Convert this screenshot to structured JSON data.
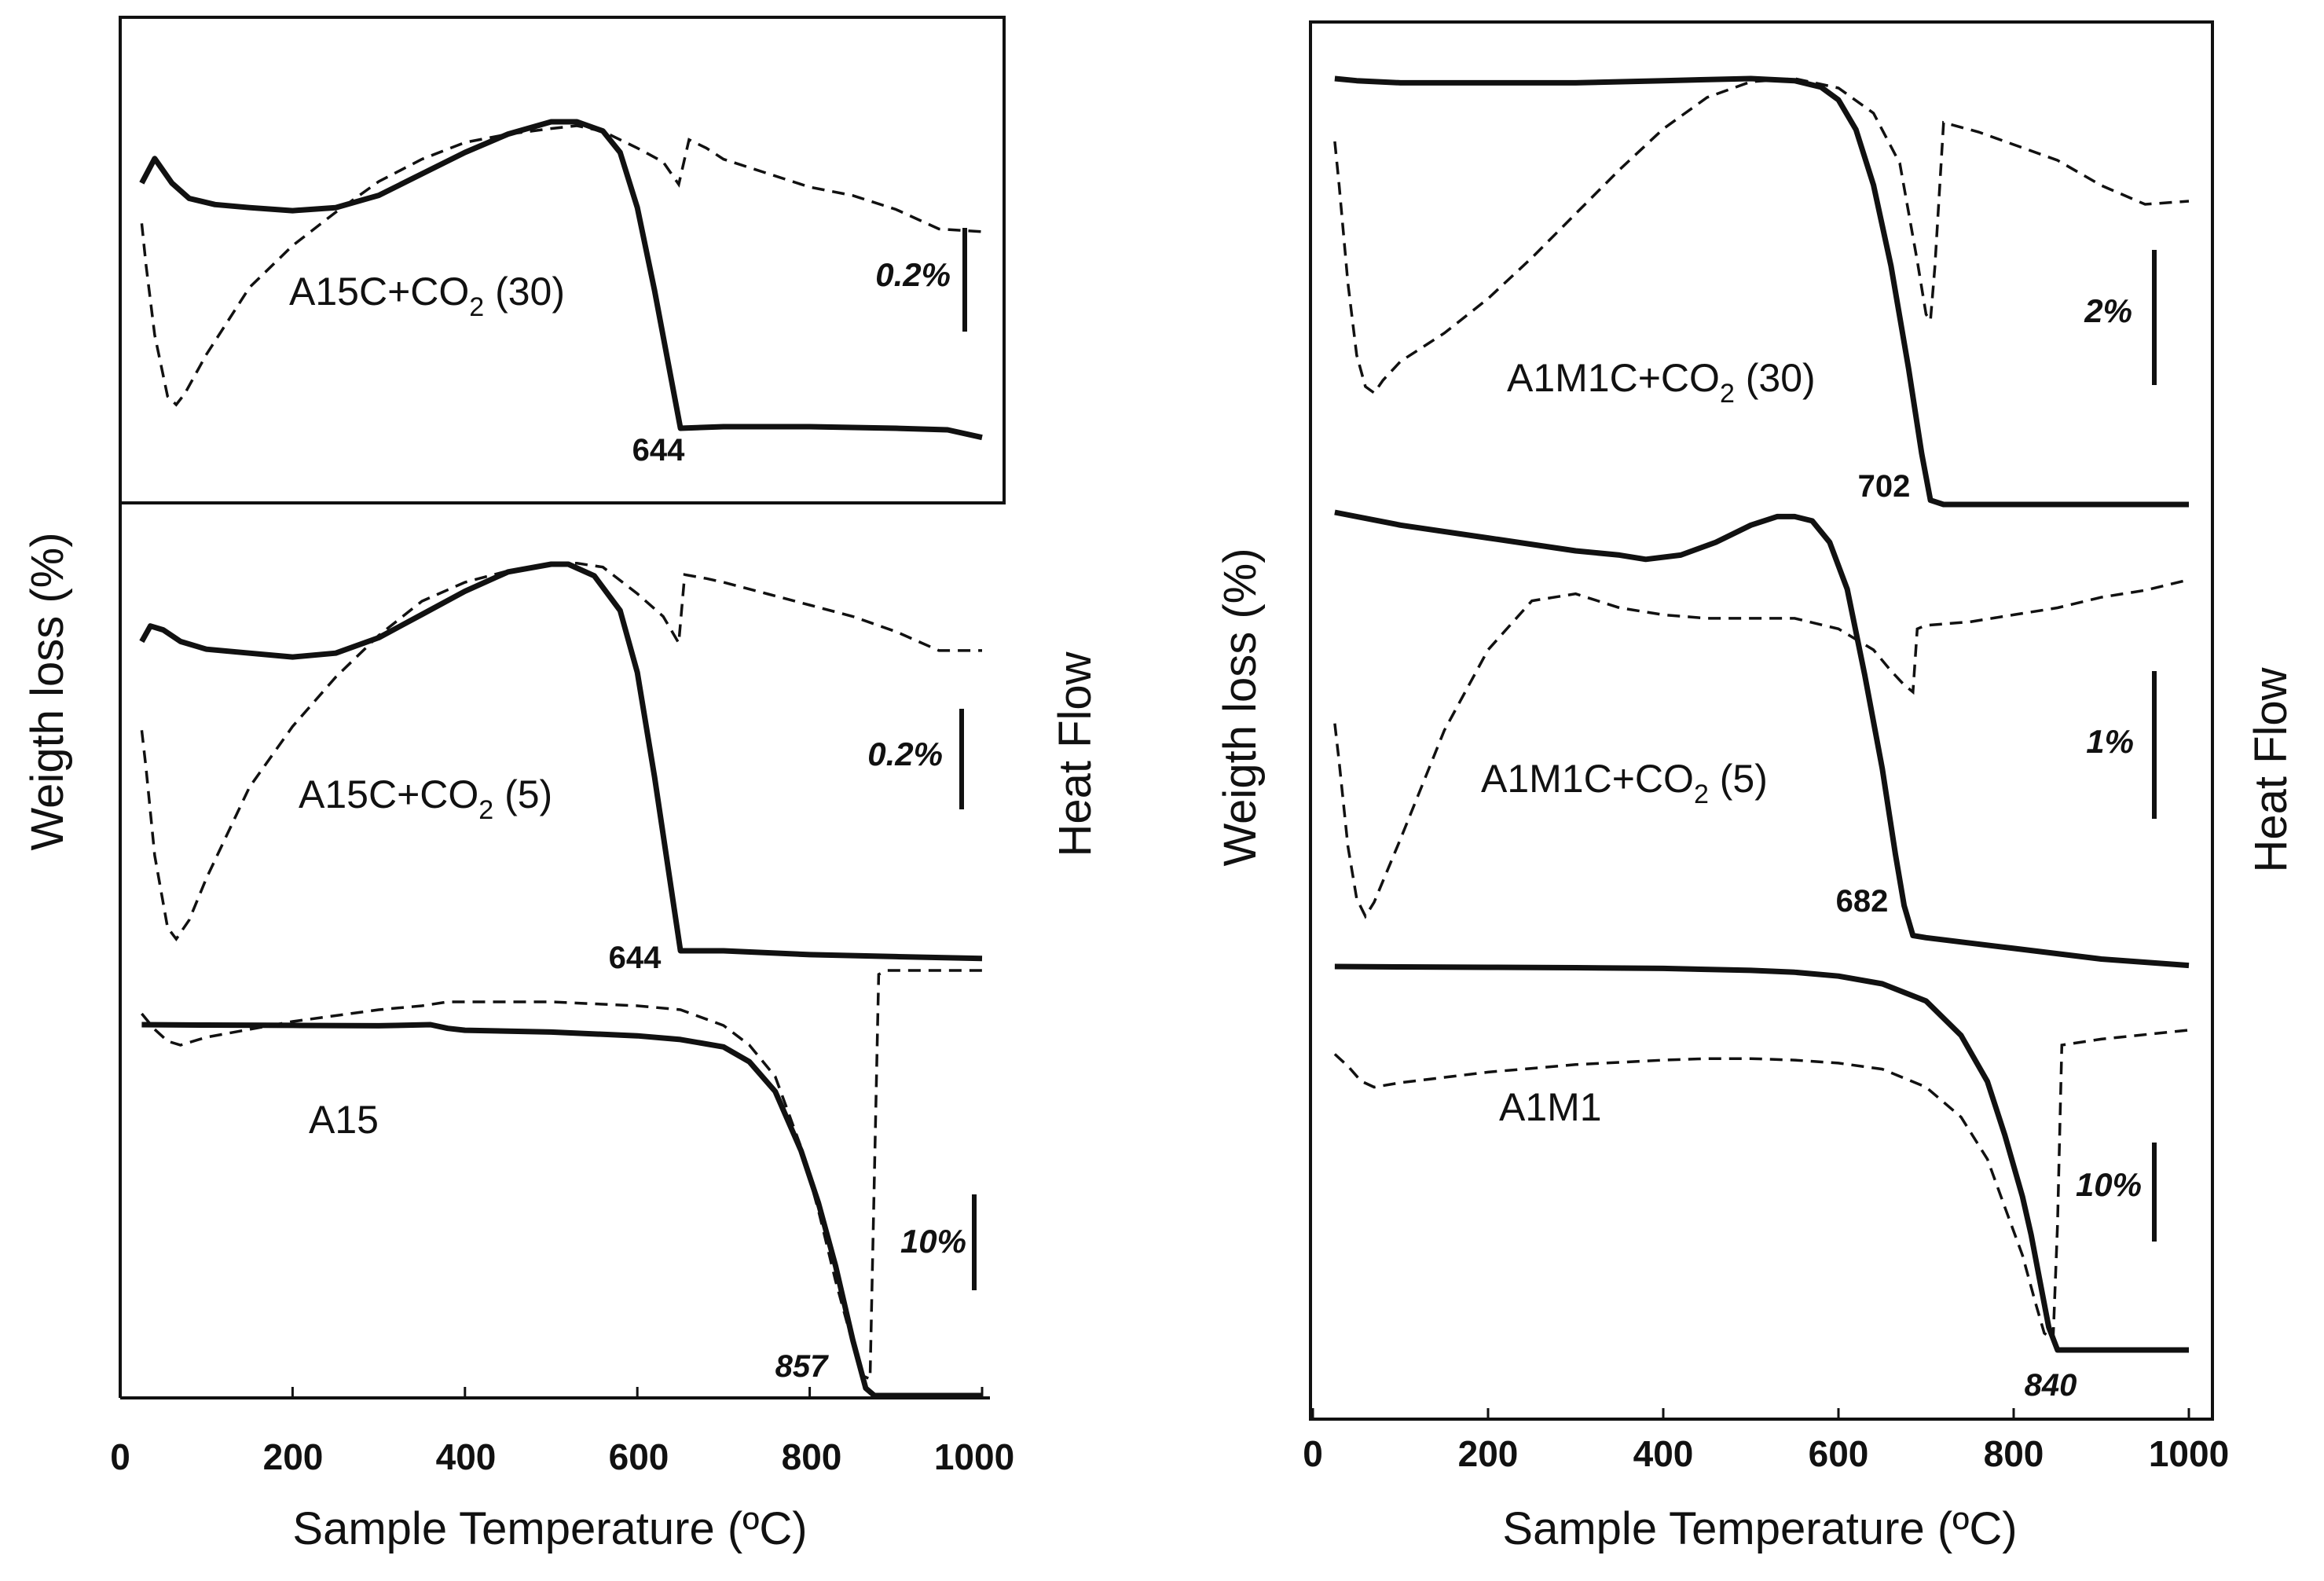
{
  "chart_data": [
    {
      "type": "line",
      "xlabel": "Sample Temperature (ºC)",
      "ylabel_left": "Weigth loss (%)",
      "ylabel_right": "Heat Flow",
      "xlim": [
        0,
        1000
      ],
      "xticks": [
        "0",
        "200",
        "400",
        "600",
        "800",
        "1000"
      ],
      "subplots": [
        {
          "label": {
            "base": "A15C+CO",
            "sub": "2",
            "tail": " (30)"
          },
          "peak": "644",
          "scale": "0.2%",
          "series": [
            {
              "name": "weight loss",
              "style": "solid",
              "x": [
                25,
                40,
                60,
                80,
                110,
                150,
                200,
                250,
                300,
                350,
                400,
                450,
                500,
                530,
                560,
                580,
                600,
                620,
                640,
                650,
                700,
                800,
                900,
                960,
                1000
              ],
              "y": [
                0.8,
                0.88,
                0.8,
                0.75,
                0.73,
                0.72,
                0.71,
                0.72,
                0.76,
                0.83,
                0.9,
                0.96,
                1.0,
                1.0,
                0.97,
                0.9,
                0.72,
                0.45,
                0.15,
                0.0,
                0.005,
                0.005,
                0.0,
                -0.005,
                -0.03
              ]
            },
            {
              "name": "heat flow",
              "style": "dashed",
              "x": [
                25,
                30,
                40,
                55,
                65,
                75,
                100,
                150,
                200,
                250,
                300,
                350,
                400,
                450,
                500,
                530,
                560,
                600,
                630,
                648,
                660,
                680,
                700,
                750,
                800,
                850,
                900,
                950,
                1000
              ],
              "y": [
                0.65,
                0.5,
                0.25,
                0.03,
                0.0,
                0.04,
                0.18,
                0.42,
                0.57,
                0.69,
                0.8,
                0.88,
                0.94,
                0.97,
                0.99,
                1.0,
                0.98,
                0.92,
                0.87,
                0.79,
                0.95,
                0.92,
                0.88,
                0.83,
                0.78,
                0.75,
                0.7,
                0.63,
                0.62
              ]
            }
          ]
        },
        {
          "label": {
            "base": "A15C+CO",
            "sub": "2",
            "tail": " (5)"
          },
          "peak": "644",
          "scale": "0.2%",
          "series": [
            {
              "name": "weight loss",
              "style": "solid",
              "x": [
                25,
                35,
                50,
                70,
                100,
                150,
                200,
                250,
                300,
                350,
                400,
                450,
                500,
                520,
                550,
                580,
                600,
                620,
                640,
                650,
                700,
                800,
                900,
                1000
              ],
              "y": [
                0.8,
                0.84,
                0.83,
                0.8,
                0.78,
                0.77,
                0.76,
                0.77,
                0.81,
                0.87,
                0.93,
                0.98,
                1.0,
                1.0,
                0.97,
                0.88,
                0.72,
                0.45,
                0.15,
                0.0,
                0.0,
                -0.01,
                -0.015,
                -0.02
              ]
            },
            {
              "name": "heat flow",
              "style": "dashed",
              "x": [
                25,
                30,
                40,
                55,
                65,
                80,
                100,
                150,
                200,
                250,
                300,
                350,
                400,
                450,
                500,
                530,
                560,
                600,
                630,
                648,
                655,
                680,
                700,
                750,
                800,
                850,
                900,
                950,
                1000
              ],
              "y": [
                0.55,
                0.45,
                0.22,
                0.03,
                0.0,
                0.05,
                0.16,
                0.4,
                0.56,
                0.69,
                0.8,
                0.89,
                0.94,
                0.97,
                0.99,
                0.99,
                0.98,
                0.91,
                0.85,
                0.78,
                0.96,
                0.95,
                0.94,
                0.91,
                0.88,
                0.85,
                0.81,
                0.76,
                0.76
              ]
            }
          ]
        },
        {
          "label": {
            "base": "A15",
            "sub": "",
            "tail": ""
          },
          "peak": "857",
          "scale": "10%",
          "series": [
            {
              "name": "weight loss",
              "style": "solid",
              "x": [
                25,
                100,
                200,
                300,
                360,
                380,
                400,
                500,
                600,
                650,
                700,
                730,
                760,
                790,
                810,
                830,
                850,
                865,
                875,
                900,
                1000
              ],
              "y": [
                1.0,
                0.999,
                0.998,
                0.997,
                1.0,
                0.99,
                0.985,
                0.98,
                0.97,
                0.96,
                0.94,
                0.9,
                0.82,
                0.66,
                0.52,
                0.35,
                0.15,
                0.02,
                0.0,
                0.0,
                0.0
              ]
            },
            {
              "name": "heat flow",
              "style": "dashed",
              "x": [
                25,
                40,
                55,
                70,
                100,
                200,
                300,
                350,
                380,
                400,
                500,
                600,
                650,
                700,
                730,
                760,
                790,
                810,
                830,
                850,
                860,
                870,
                880,
                890,
                1000
              ],
              "y": [
                0.98,
                0.94,
                0.91,
                0.9,
                0.92,
                0.96,
                0.99,
                1.0,
                1.01,
                1.01,
                1.01,
                1.0,
                0.99,
                0.95,
                0.9,
                0.82,
                0.64,
                0.48,
                0.3,
                0.14,
                0.06,
                0.05,
                1.08,
                1.09,
                1.09
              ]
            }
          ]
        }
      ]
    },
    {
      "type": "line",
      "xlabel": "Sample Temperature (ºC)",
      "ylabel_left": "Weigth loss (%)",
      "ylabel_right": "Heat Flow",
      "xlim": [
        0,
        1000
      ],
      "xticks": [
        "0",
        "200",
        "400",
        "600",
        "800",
        "1000"
      ],
      "subplots": [
        {
          "label": {
            "base": "A1M1C+CO",
            "sub": "2",
            "tail": " (30)"
          },
          "peak": "702",
          "scale": "2%",
          "series": [
            {
              "name": "weight loss",
              "style": "solid",
              "x": [
                25,
                50,
                100,
                200,
                300,
                400,
                500,
                550,
                580,
                600,
                620,
                640,
                660,
                680,
                695,
                705,
                720,
                800,
                900,
                1000
              ],
              "y": [
                1.0,
                0.995,
                0.99,
                0.99,
                0.99,
                0.995,
                1.0,
                0.995,
                0.98,
                0.95,
                0.88,
                0.75,
                0.56,
                0.32,
                0.12,
                0.01,
                0.0,
                0.0,
                0.0,
                0.0
              ]
            },
            {
              "name": "heat flow",
              "style": "dashed",
              "x": [
                25,
                30,
                40,
                50,
                60,
                70,
                80,
                100,
                150,
                200,
                250,
                300,
                350,
                400,
                450,
                500,
                550,
                600,
                640,
                670,
                690,
                700,
                705,
                710,
                720,
                760,
                800,
                850,
                900,
                950,
                1000
              ],
              "y": [
                0.8,
                0.66,
                0.35,
                0.12,
                0.02,
                0.0,
                0.04,
                0.1,
                0.19,
                0.3,
                0.43,
                0.57,
                0.71,
                0.84,
                0.94,
                0.99,
                1.0,
                0.97,
                0.89,
                0.73,
                0.42,
                0.25,
                0.23,
                0.4,
                0.86,
                0.83,
                0.79,
                0.74,
                0.66,
                0.6,
                0.61
              ]
            }
          ]
        },
        {
          "label": {
            "base": "A1M1C+CO",
            "sub": "2",
            "tail": " (5)"
          },
          "peak": "682",
          "scale": "1%",
          "series": [
            {
              "name": "weight loss",
              "style": "solid",
              "x": [
                25,
                100,
                200,
                300,
                350,
                380,
                420,
                460,
                500,
                530,
                550,
                570,
                590,
                610,
                630,
                650,
                665,
                675,
                685,
                700,
                800,
                900,
                1000
              ],
              "y": [
                1.0,
                0.97,
                0.94,
                0.91,
                0.9,
                0.89,
                0.9,
                0.93,
                0.97,
                0.99,
                0.99,
                0.98,
                0.93,
                0.82,
                0.62,
                0.4,
                0.2,
                0.08,
                0.01,
                0.005,
                -0.02,
                -0.045,
                -0.06
              ]
            },
            {
              "name": "heat flow",
              "style": "dashed",
              "x": [
                25,
                30,
                40,
                50,
                60,
                70,
                100,
                150,
                200,
                250,
                300,
                350,
                400,
                450,
                500,
                550,
                600,
                640,
                660,
                675,
                685,
                690,
                700,
                750,
                800,
                850,
                900,
                950,
                1000
              ],
              "y": [
                0.55,
                0.44,
                0.2,
                0.05,
                0.0,
                0.04,
                0.22,
                0.53,
                0.76,
                0.9,
                0.92,
                0.88,
                0.86,
                0.85,
                0.85,
                0.85,
                0.82,
                0.76,
                0.7,
                0.66,
                0.64,
                0.82,
                0.83,
                0.84,
                0.86,
                0.88,
                0.91,
                0.93,
                0.96
              ]
            }
          ]
        },
        {
          "label": {
            "base": "A1M1",
            "sub": "",
            "tail": ""
          },
          "peak": "840",
          "scale": "10%",
          "series": [
            {
              "name": "weight loss",
              "style": "solid",
              "x": [
                25,
                100,
                200,
                300,
                400,
                500,
                550,
                600,
                650,
                700,
                740,
                770,
                790,
                810,
                820,
                830,
                840,
                850,
                860,
                900,
                1000
              ],
              "y": [
                1.0,
                0.999,
                0.998,
                0.997,
                0.995,
                0.99,
                0.985,
                0.975,
                0.955,
                0.91,
                0.82,
                0.7,
                0.56,
                0.4,
                0.3,
                0.18,
                0.06,
                0.0,
                0.0,
                0.0,
                0.0
              ]
            },
            {
              "name": "heat flow",
              "style": "dashed",
              "x": [
                25,
                40,
                55,
                70,
                100,
                200,
                300,
                400,
                450,
                500,
                550,
                600,
                650,
                700,
                740,
                770,
                790,
                810,
                825,
                835,
                845,
                850,
                855,
                900,
                1000
              ],
              "y": [
                0.97,
                0.93,
                0.88,
                0.86,
                0.875,
                0.91,
                0.935,
                0.95,
                0.955,
                0.955,
                0.95,
                0.94,
                0.92,
                0.86,
                0.76,
                0.62,
                0.46,
                0.3,
                0.14,
                0.04,
                0.02,
                0.4,
                1.0,
                1.02,
                1.05
              ]
            }
          ]
        }
      ]
    }
  ]
}
